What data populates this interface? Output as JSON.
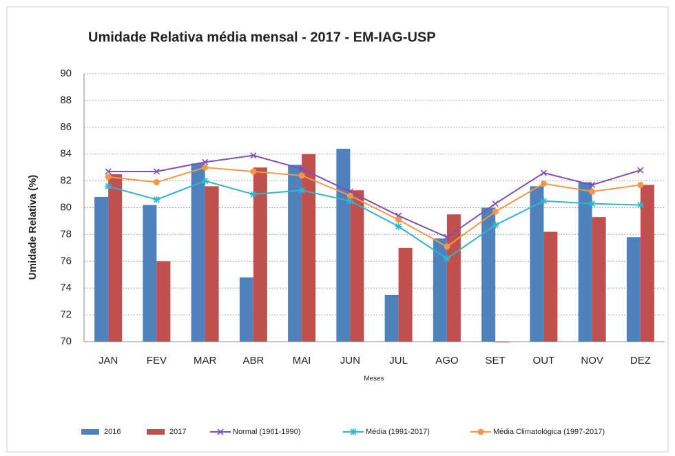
{
  "chart_data": {
    "type": "bar",
    "title": "Umidade Relativa média mensal - 2017 - EM-IAG-USP",
    "xlabel": "Meses",
    "ylabel": "Umidade Relativa (%)",
    "categories": [
      "JAN",
      "FEV",
      "MAR",
      "ABR",
      "MAI",
      "JUN",
      "JUL",
      "AGO",
      "SET",
      "OUT",
      "NOV",
      "DEZ"
    ],
    "ylim": [
      70,
      90
    ],
    "yticks": [
      70,
      72,
      74,
      76,
      78,
      80,
      82,
      84,
      86,
      88,
      90
    ],
    "grid": true,
    "series": [
      {
        "name": "2016",
        "type": "bar",
        "color": "#4f81bd",
        "values": [
          80.8,
          80.2,
          83.3,
          74.8,
          83.2,
          84.4,
          73.5,
          77.7,
          80.0,
          81.6,
          81.9,
          77.8
        ]
      },
      {
        "name": "2017",
        "type": "bar",
        "color": "#c0504d",
        "values": [
          82.5,
          76.0,
          81.6,
          83.0,
          84.0,
          81.3,
          77.0,
          79.5,
          70.0,
          78.2,
          79.3,
          81.7
        ]
      },
      {
        "name": "Normal (1961-1990)",
        "type": "line",
        "marker": "x",
        "color": "#7f4fb5",
        "values": [
          82.7,
          82.7,
          83.4,
          83.9,
          82.9,
          81.2,
          79.4,
          77.8,
          80.3,
          82.6,
          81.7,
          82.8
        ]
      },
      {
        "name": "Média (1991-2017)",
        "type": "line",
        "marker": "star",
        "color": "#2eb6d0",
        "values": [
          81.6,
          80.6,
          82.0,
          81.0,
          81.3,
          80.5,
          78.6,
          76.2,
          78.7,
          80.5,
          80.3,
          80.2
        ]
      },
      {
        "name": "Média Climatológica (1997-2017)",
        "type": "line",
        "marker": "circle",
        "color": "#f79646",
        "values": [
          82.3,
          81.9,
          83.0,
          82.7,
          82.4,
          80.9,
          79.1,
          77.1,
          79.7,
          81.8,
          81.2,
          81.7
        ]
      }
    ]
  }
}
